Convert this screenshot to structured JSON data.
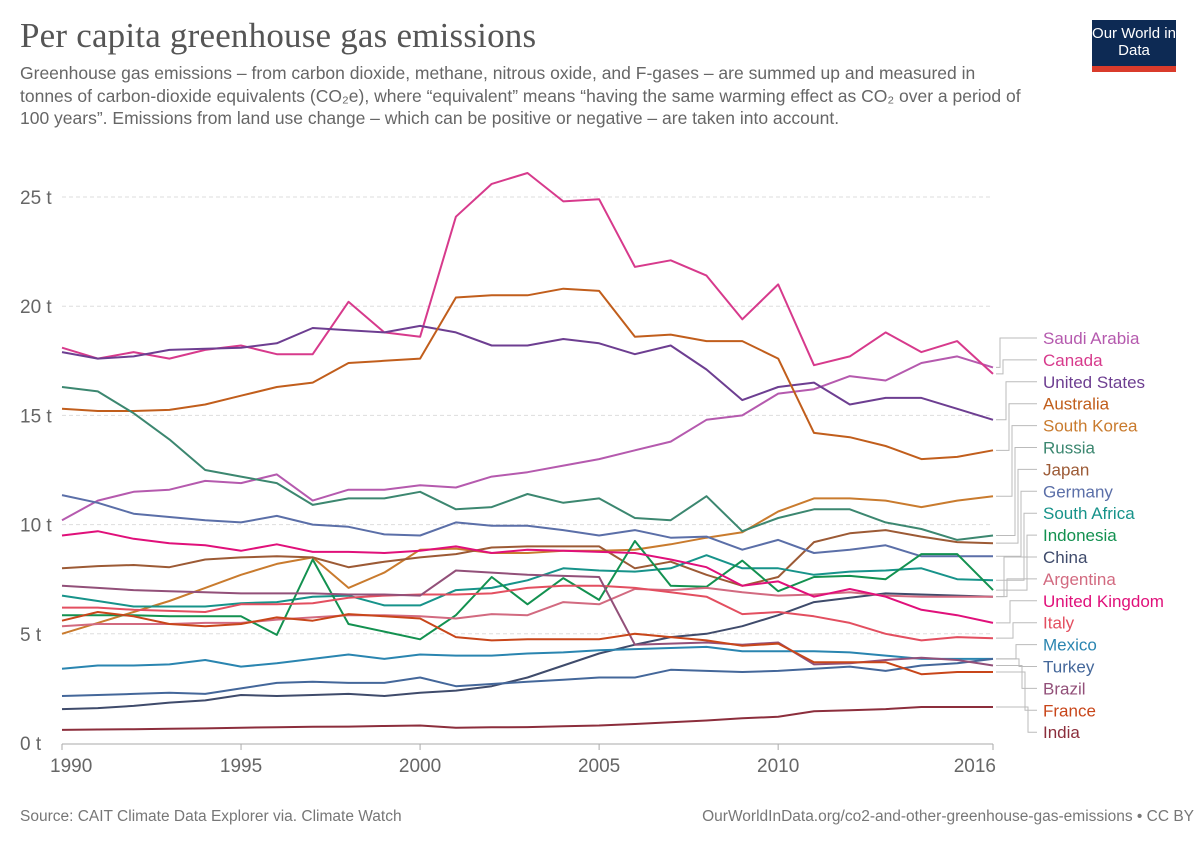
{
  "header": {
    "title": "Per capita greenhouse gas emissions",
    "subtitle": "Greenhouse gas emissions – from carbon dioxide, methane, nitrous oxide, and F-gases – are summed up and measured in tonnes of carbon-dioxide equivalents (CO₂e), where “equivalent” means “having the same warming effect as CO₂ over a period of 100 years”. Emissions from land use change – which can be positive or negative – are taken into account.",
    "logo": "Our World in Data"
  },
  "footer": {
    "source": "Source: CAIT Climate Data Explorer via. Climate Watch",
    "url": "OurWorldInData.org/co2-and-other-greenhouse-gas-emissions • CC BY"
  },
  "chart_data": {
    "type": "line",
    "title": "Per capita greenhouse gas emissions",
    "xlabel": "",
    "ylabel": "",
    "xlim": [
      1990,
      2016
    ],
    "ylim": [
      0,
      26
    ],
    "x_ticks": [
      "1990",
      "1995",
      "2000",
      "2005",
      "2010",
      "2016"
    ],
    "y_ticks": [
      "0 t",
      "5 t",
      "10 t",
      "15 t",
      "20 t",
      "25 t"
    ],
    "grid": "horizontal dashed",
    "legend": "right (line-end labels)",
    "x": [
      1990,
      1991,
      1992,
      1993,
      1994,
      1995,
      1996,
      1997,
      1998,
      1999,
      2000,
      2001,
      2002,
      2003,
      2004,
      2005,
      2006,
      2007,
      2008,
      2009,
      2010,
      2011,
      2012,
      2013,
      2014,
      2015,
      2016
    ],
    "series": [
      {
        "name": "Saudi Arabia",
        "color": "#b55aae",
        "values": [
          10.2,
          11.1,
          11.5,
          11.6,
          12.0,
          11.9,
          12.3,
          11.1,
          11.6,
          11.6,
          11.8,
          11.7,
          12.2,
          12.4,
          12.7,
          13.0,
          13.4,
          13.8,
          14.8,
          15.0,
          16.0,
          16.2,
          16.8,
          16.6,
          17.4,
          17.7,
          17.2
        ]
      },
      {
        "name": "Canada",
        "color": "#d73a8c",
        "values": [
          18.1,
          17.6,
          17.9,
          17.6,
          18.0,
          18.2,
          17.8,
          17.8,
          20.2,
          18.8,
          18.6,
          24.1,
          25.6,
          26.1,
          24.8,
          24.9,
          21.8,
          22.1,
          21.4,
          19.4,
          21.0,
          17.3,
          17.7,
          18.8,
          17.9,
          18.4,
          16.9
        ]
      },
      {
        "name": "United States",
        "color": "#6d3e91",
        "values": [
          17.9,
          17.6,
          17.7,
          18.0,
          18.05,
          18.1,
          18.3,
          19.0,
          18.9,
          18.8,
          19.1,
          18.8,
          18.2,
          18.2,
          18.5,
          18.3,
          17.8,
          18.2,
          17.1,
          15.7,
          16.3,
          16.5,
          15.5,
          15.8,
          15.8,
          15.3,
          14.8
        ]
      },
      {
        "name": "Australia",
        "color": "#c15e1c",
        "values": [
          15.3,
          15.2,
          15.2,
          15.25,
          15.5,
          15.9,
          16.3,
          16.5,
          17.4,
          17.5,
          17.6,
          20.4,
          20.5,
          20.5,
          20.8,
          20.7,
          18.6,
          18.7,
          18.4,
          18.4,
          17.6,
          14.2,
          14.0,
          13.6,
          13.0,
          13.1,
          13.4
        ]
      },
      {
        "name": "South Korea",
        "color": "#c97b2e",
        "values": [
          5.0,
          5.5,
          6.0,
          6.5,
          7.1,
          7.7,
          8.2,
          8.5,
          7.1,
          7.8,
          8.85,
          8.9,
          8.7,
          8.7,
          8.8,
          8.8,
          8.85,
          9.1,
          9.4,
          9.65,
          10.6,
          11.2,
          11.2,
          11.1,
          10.8,
          11.1,
          11.3
        ]
      },
      {
        "name": "Russia",
        "color": "#3c8770",
        "values": [
          16.3,
          16.1,
          15.1,
          13.9,
          12.5,
          12.2,
          11.9,
          10.9,
          11.2,
          11.2,
          11.5,
          10.7,
          10.8,
          11.4,
          11.0,
          11.2,
          10.3,
          10.2,
          11.3,
          9.7,
          10.3,
          10.7,
          10.7,
          10.1,
          9.8,
          9.3,
          9.5
        ]
      },
      {
        "name": "Japan",
        "color": "#9c5a35",
        "values": [
          8.0,
          8.1,
          8.15,
          8.05,
          8.4,
          8.5,
          8.55,
          8.5,
          8.05,
          8.3,
          8.5,
          8.65,
          8.95,
          9.0,
          9.0,
          9.0,
          8.0,
          8.3,
          7.7,
          7.2,
          7.6,
          9.2,
          9.6,
          9.75,
          9.45,
          9.2,
          9.15
        ]
      },
      {
        "name": "Germany",
        "color": "#5b6fa8",
        "values": [
          11.35,
          11.0,
          10.5,
          10.35,
          10.2,
          10.1,
          10.4,
          10.0,
          9.9,
          9.55,
          9.5,
          10.1,
          9.95,
          9.95,
          9.75,
          9.5,
          9.75,
          9.4,
          9.45,
          8.85,
          9.3,
          8.7,
          8.85,
          9.05,
          8.55,
          8.55,
          8.55
        ]
      },
      {
        "name": "South Africa",
        "color": "#17938a",
        "values": [
          6.75,
          6.5,
          6.25,
          6.25,
          6.25,
          6.4,
          6.45,
          6.7,
          6.75,
          6.3,
          6.3,
          7.0,
          7.1,
          7.45,
          8.0,
          7.9,
          7.85,
          8.0,
          8.6,
          8.0,
          8.0,
          7.7,
          7.85,
          7.9,
          8.0,
          7.5,
          7.45
        ]
      },
      {
        "name": "Indonesia",
        "color": "#139150",
        "values": [
          5.85,
          5.85,
          5.85,
          5.8,
          5.8,
          5.8,
          4.95,
          8.4,
          5.45,
          5.1,
          4.75,
          5.85,
          7.6,
          6.35,
          7.55,
          6.55,
          9.25,
          7.2,
          7.15,
          8.35,
          6.95,
          7.6,
          7.65,
          7.5,
          8.65,
          8.65,
          7.0
        ]
      },
      {
        "name": "China",
        "color": "#3f4b6b",
        "values": [
          1.55,
          1.6,
          1.7,
          1.85,
          1.95,
          2.2,
          2.15,
          2.2,
          2.25,
          2.15,
          2.3,
          2.4,
          2.6,
          3.0,
          3.55,
          4.1,
          4.5,
          4.85,
          5.0,
          5.35,
          5.85,
          6.45,
          6.65,
          6.85,
          6.8,
          6.75,
          6.7
        ]
      },
      {
        "name": "Argentina",
        "color": "#d26a80",
        "values": [
          5.35,
          5.45,
          5.45,
          5.45,
          5.5,
          5.5,
          5.65,
          5.75,
          5.85,
          5.85,
          5.8,
          5.7,
          5.9,
          5.85,
          6.45,
          6.35,
          7.05,
          7.0,
          7.1,
          6.9,
          6.75,
          6.8,
          6.9,
          6.75,
          6.7,
          6.7,
          6.7
        ]
      },
      {
        "name": "United Kingdom",
        "color": "#e0107a",
        "values": [
          9.5,
          9.7,
          9.35,
          9.15,
          9.05,
          8.8,
          9.1,
          8.75,
          8.75,
          8.7,
          8.8,
          9.0,
          8.7,
          8.85,
          8.8,
          8.75,
          8.7,
          8.4,
          8.05,
          7.2,
          7.4,
          6.7,
          7.05,
          6.7,
          6.1,
          5.85,
          5.5
        ]
      },
      {
        "name": "Italy",
        "color": "#e34f60",
        "values": [
          6.2,
          6.2,
          6.1,
          6.05,
          6.0,
          6.35,
          6.35,
          6.4,
          6.65,
          6.75,
          6.8,
          6.8,
          6.85,
          7.1,
          7.2,
          7.2,
          7.1,
          6.9,
          6.7,
          5.9,
          6.0,
          5.8,
          5.5,
          5.0,
          4.7,
          4.85,
          4.8
        ]
      },
      {
        "name": "Mexico",
        "color": "#2a85b0",
        "values": [
          3.4,
          3.55,
          3.55,
          3.6,
          3.8,
          3.5,
          3.65,
          3.85,
          4.05,
          3.85,
          4.05,
          4.0,
          4.0,
          4.1,
          4.15,
          4.25,
          4.3,
          4.35,
          4.4,
          4.2,
          4.2,
          4.2,
          4.15,
          4.0,
          3.85,
          3.85,
          3.85
        ]
      },
      {
        "name": "Turkey",
        "color": "#44679a",
        "values": [
          2.15,
          2.2,
          2.25,
          2.3,
          2.25,
          2.5,
          2.75,
          2.8,
          2.75,
          2.75,
          3.0,
          2.6,
          2.7,
          2.8,
          2.9,
          3.0,
          3.0,
          3.35,
          3.3,
          3.25,
          3.3,
          3.4,
          3.5,
          3.3,
          3.55,
          3.65,
          3.85
        ]
      },
      {
        "name": "Brazil",
        "color": "#925079",
        "values": [
          7.2,
          7.1,
          7.0,
          6.95,
          6.9,
          6.85,
          6.85,
          6.85,
          6.8,
          6.8,
          6.75,
          7.9,
          7.8,
          7.7,
          7.65,
          7.6,
          4.5,
          4.55,
          4.6,
          4.5,
          4.6,
          3.6,
          3.65,
          3.8,
          3.9,
          3.8,
          3.55
        ]
      },
      {
        "name": "France",
        "color": "#c8461a",
        "values": [
          5.6,
          6.0,
          5.8,
          5.45,
          5.35,
          5.45,
          5.75,
          5.6,
          5.9,
          5.8,
          5.7,
          4.85,
          4.7,
          4.75,
          4.75,
          4.75,
          5.0,
          4.85,
          4.7,
          4.45,
          4.55,
          3.7,
          3.7,
          3.7,
          3.15,
          3.25,
          3.25
        ]
      },
      {
        "name": "India",
        "color": "#8c2e3c",
        "values": [
          0.6,
          0.62,
          0.63,
          0.65,
          0.67,
          0.7,
          0.72,
          0.74,
          0.75,
          0.78,
          0.8,
          0.7,
          0.72,
          0.73,
          0.77,
          0.8,
          0.87,
          0.95,
          1.03,
          1.13,
          1.2,
          1.45,
          1.5,
          1.55,
          1.65,
          1.65,
          1.65
        ]
      }
    ]
  }
}
